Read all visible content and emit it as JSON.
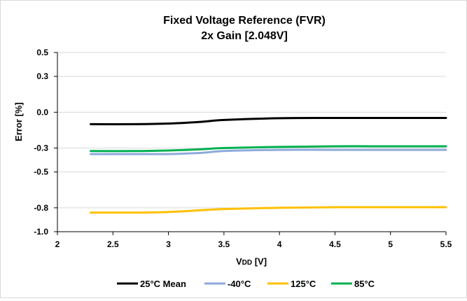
{
  "chart_data": {
    "type": "line",
    "title": "Fixed Voltage Reference (FVR)",
    "subtitle": "2x Gain [2.048V]",
    "xlabel_main": "V",
    "xlabel_sub": "DD",
    "xlabel_unit": " [V]",
    "ylabel": "Error [%]",
    "xlim": [
      2,
      5.5
    ],
    "ylim": [
      -1.0,
      0.5
    ],
    "xticks": [
      2,
      2.5,
      3,
      3.5,
      4,
      4.5,
      5,
      5.5
    ],
    "xtick_labels": [
      "2",
      "2.5",
      "3",
      "3.5",
      "4",
      "4.5",
      "5",
      "5.5"
    ],
    "yticks": [
      0.5,
      0.3,
      0.0,
      -0.3,
      -0.5,
      -0.8,
      -1.0
    ],
    "ytick_labels": [
      "0.5",
      "0.3",
      "0.0",
      "-0.3",
      "-0.5",
      "-0.8",
      "-1.0"
    ],
    "grid": "horizontal",
    "legend_position": "bottom",
    "x": [
      2.3,
      2.7,
      3.0,
      3.3,
      3.5,
      4.0,
      4.5,
      5.0,
      5.5
    ],
    "series": [
      {
        "name": "25°C Mean",
        "color": "#000000",
        "values": [
          -0.1,
          -0.1,
          -0.095,
          -0.08,
          -0.065,
          -0.05,
          -0.048,
          -0.048,
          -0.048
        ]
      },
      {
        "name": "-40°C",
        "color": "#8eaadb",
        "values": [
          -0.35,
          -0.35,
          -0.35,
          -0.34,
          -0.325,
          -0.315,
          -0.315,
          -0.315,
          -0.315
        ]
      },
      {
        "name": "125°C",
        "color": "#ffc000",
        "values": [
          -0.84,
          -0.84,
          -0.835,
          -0.82,
          -0.81,
          -0.8,
          -0.795,
          -0.795,
          -0.795
        ]
      },
      {
        "name": "85°C",
        "color": "#00b050",
        "values": [
          -0.325,
          -0.325,
          -0.32,
          -0.31,
          -0.3,
          -0.29,
          -0.285,
          -0.285,
          -0.285
        ]
      }
    ]
  }
}
